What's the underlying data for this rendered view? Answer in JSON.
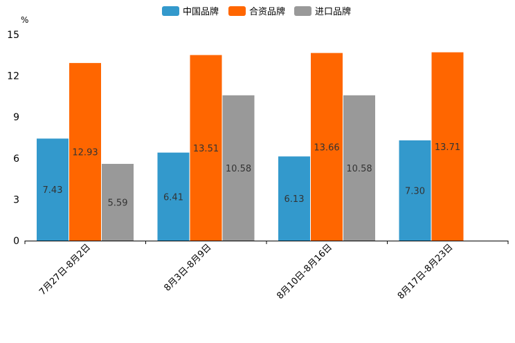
{
  "chart_data": {
    "type": "bar",
    "title": "",
    "xlabel": "",
    "ylabel": "%",
    "ylim": [
      0,
      15
    ],
    "yticks": [
      "0",
      "3",
      "6",
      "9",
      "12",
      "15"
    ],
    "legend_position": "top-center",
    "grid": false,
    "categories": [
      "7月27日-8月2日",
      "8月3日-8月9日",
      "8月10日-8月16日",
      "8月17日-8月23日"
    ],
    "series": [
      {
        "name": "中国品牌",
        "color": "#3399cc",
        "values": [
          7.43,
          6.41,
          6.13,
          7.3
        ],
        "labels": [
          "7.43",
          "6.41",
          "6.13",
          "7.30"
        ]
      },
      {
        "name": "合资品牌",
        "color": "#ff6600",
        "values": [
          12.93,
          13.51,
          13.66,
          13.71
        ],
        "labels": [
          "12.93",
          "13.51",
          "13.66",
          "13.71"
        ]
      },
      {
        "name": "进口品牌",
        "color": "#999999",
        "values": [
          5.59,
          10.58,
          10.58,
          null
        ],
        "labels": [
          "5.59",
          "10.58",
          "10.58",
          null
        ]
      }
    ]
  }
}
